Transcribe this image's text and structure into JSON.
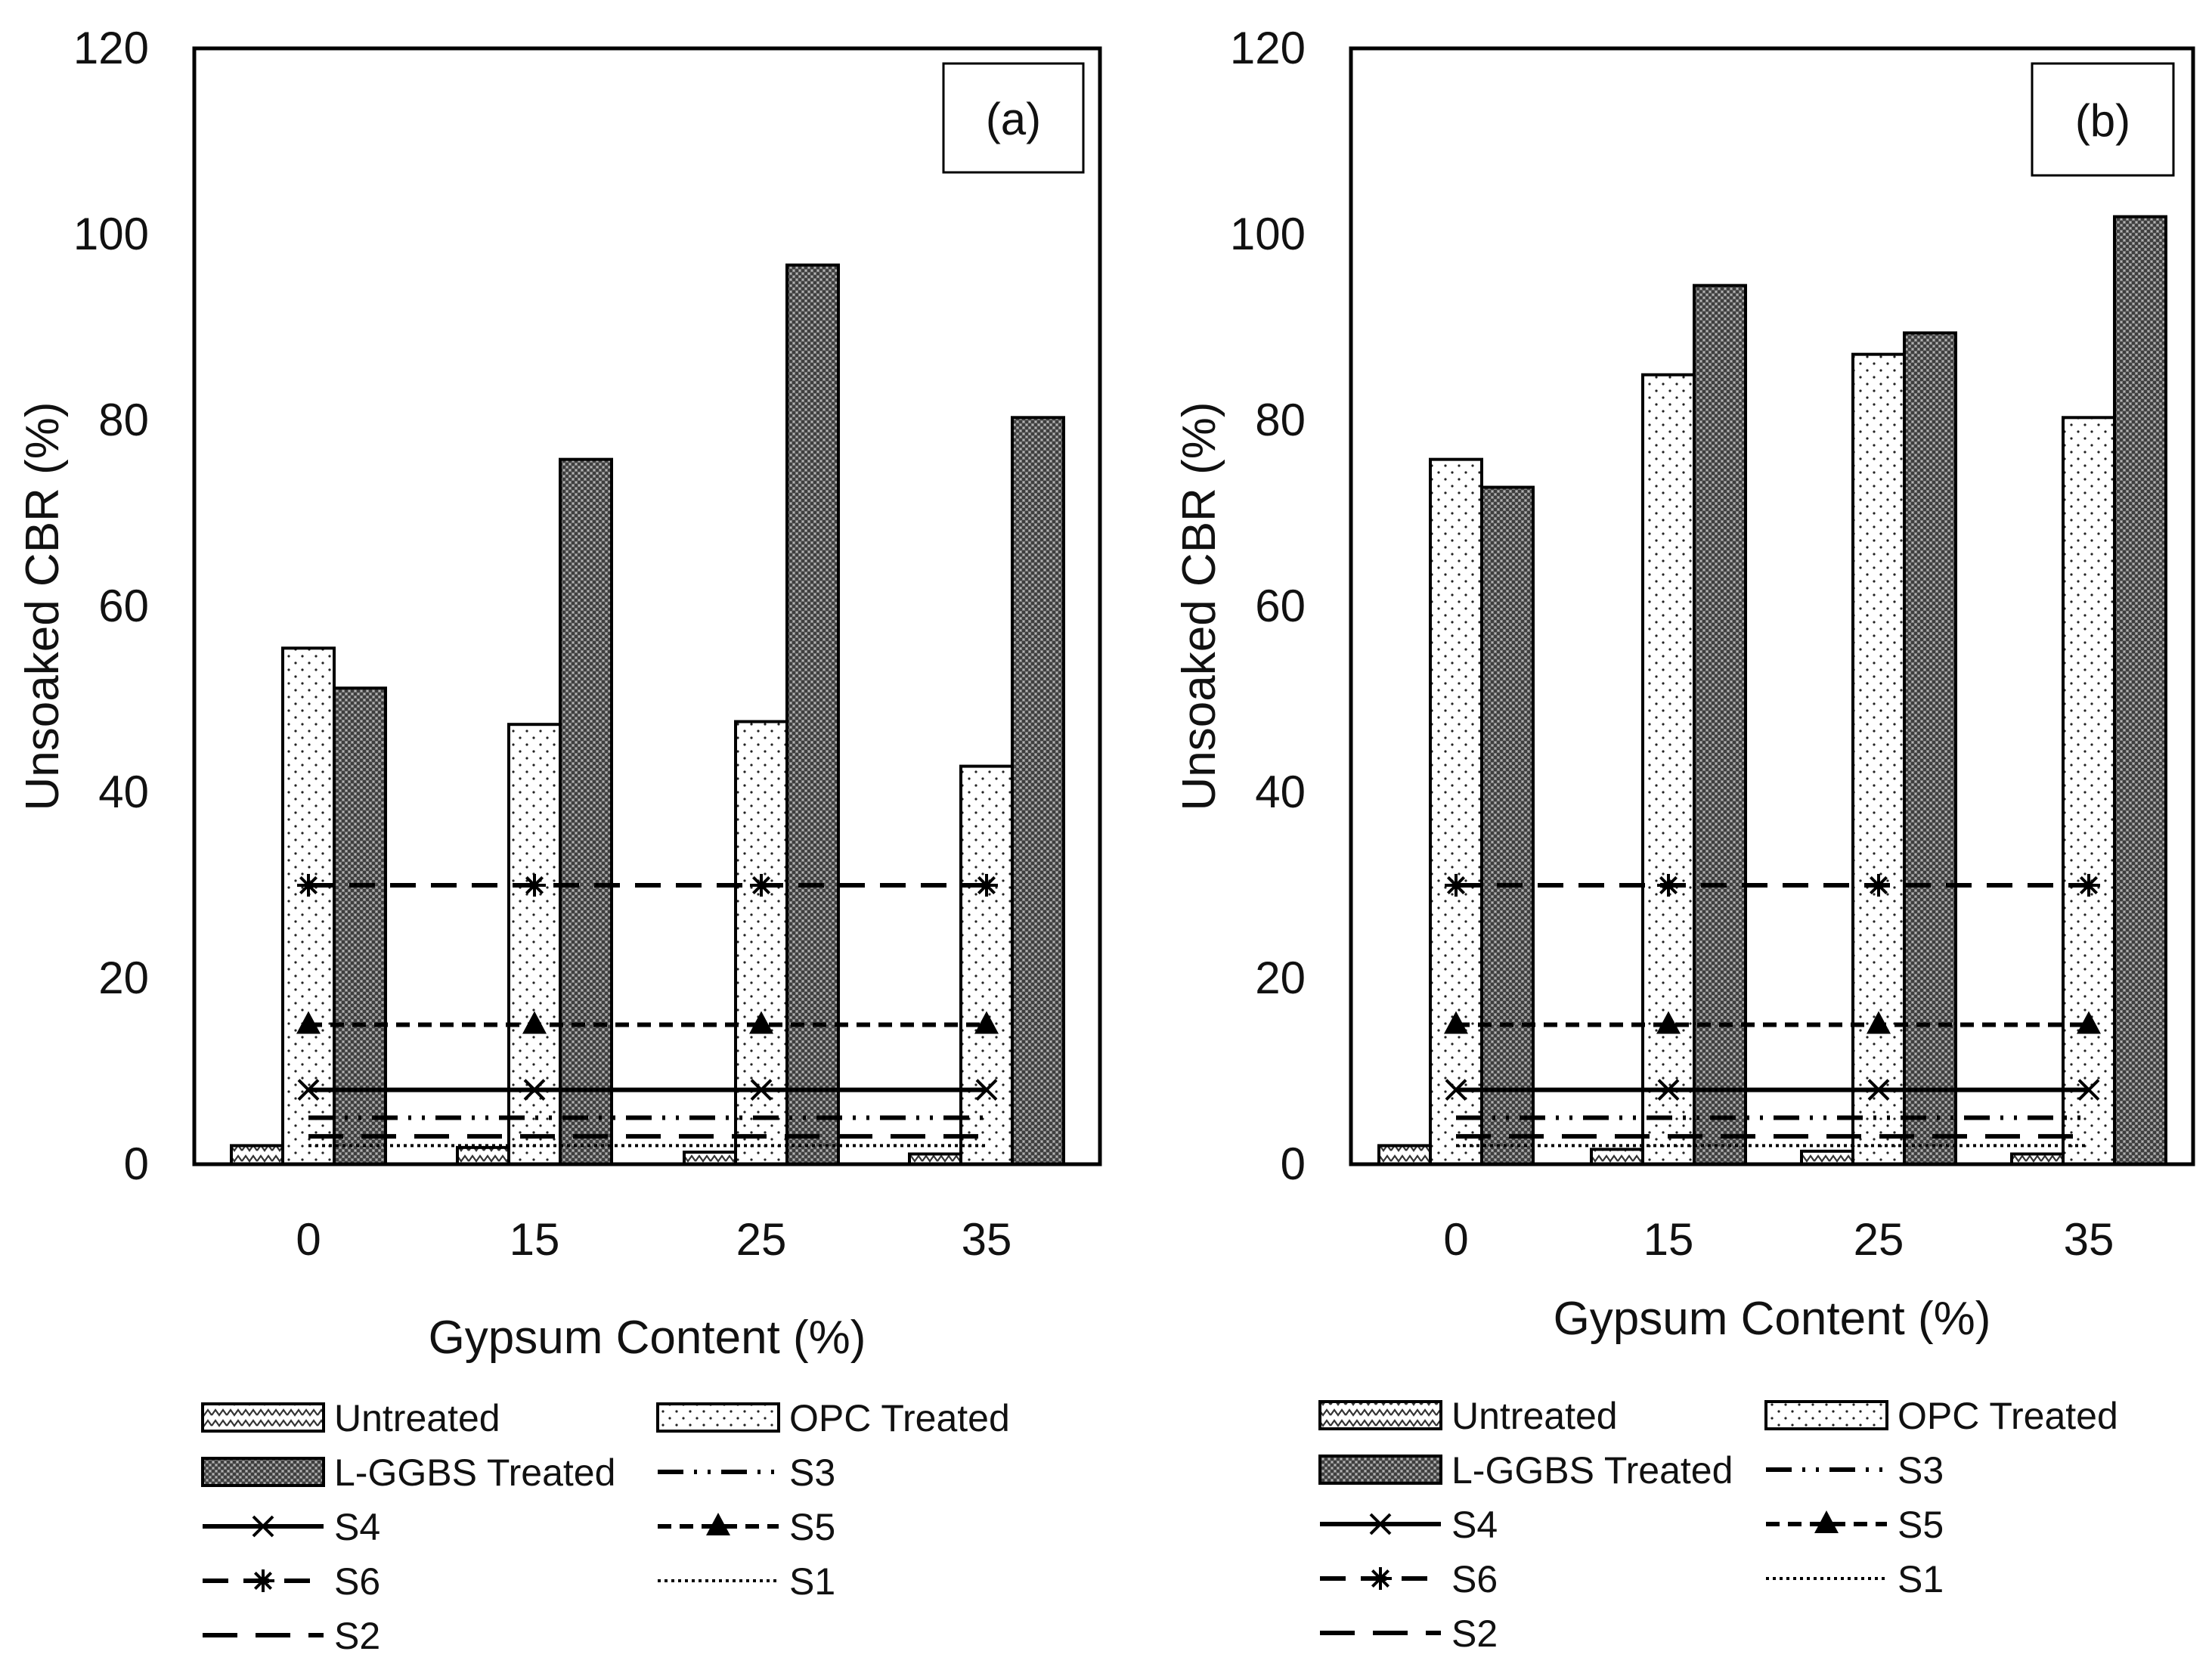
{
  "chart_data": [
    {
      "type": "bar",
      "panel_label": "(a)",
      "xlabel": "Gypsum Content (%)",
      "ylabel": "Unsoaked CBR (%)",
      "ylim": [
        0,
        120
      ],
      "yticks": [
        "0",
        "20",
        "40",
        "60",
        "80",
        "100",
        "120"
      ],
      "categories": [
        "0",
        "15",
        "25",
        "35"
      ],
      "series": [
        {
          "name": "Untreated",
          "pattern": "untreated",
          "values": [
            2,
            1.8,
            1.3,
            1.1
          ]
        },
        {
          "name": "OPC Treated",
          "pattern": "opc",
          "values": [
            55.5,
            47.3,
            47.6,
            42.8
          ]
        },
        {
          "name": "L-GGBS Treated",
          "pattern": "ggbs",
          "values": [
            51.2,
            75.8,
            96.7,
            80.3
          ]
        }
      ],
      "reference_lines": [
        {
          "name": "S3",
          "value": 5,
          "style": "dashdotdot"
        },
        {
          "name": "S4",
          "value": 8,
          "style": "solid",
          "marker": "x"
        },
        {
          "name": "S5",
          "value": 15,
          "style": "shortdash",
          "marker": "triangle"
        },
        {
          "name": "S6",
          "value": 30,
          "style": "dash",
          "marker": "star"
        },
        {
          "name": "S1",
          "value": 2,
          "style": "dotted"
        },
        {
          "name": "S2",
          "value": 3,
          "style": "longdash"
        }
      ],
      "legend": [
        "Untreated",
        "OPC Treated",
        "L-GGBS Treated",
        "S3",
        "S4",
        "S5",
        "S6",
        "S1",
        "S2"
      ]
    },
    {
      "type": "bar",
      "panel_label": "(b)",
      "xlabel": "Gypsum Content (%)",
      "ylabel": "Unsoaked CBR (%)",
      "ylim": [
        0,
        120
      ],
      "yticks": [
        "0",
        "20",
        "40",
        "60",
        "80",
        "100",
        "120"
      ],
      "categories": [
        "0",
        "15",
        "25",
        "35"
      ],
      "series": [
        {
          "name": "Untreated",
          "pattern": "untreated",
          "values": [
            2,
            1.6,
            1.4,
            1.1
          ]
        },
        {
          "name": "OPC Treated",
          "pattern": "opc",
          "values": [
            75.8,
            84.9,
            87.1,
            80.3
          ]
        },
        {
          "name": "L-GGBS Treated",
          "pattern": "ggbs",
          "values": [
            72.8,
            94.5,
            89.4,
            101.9
          ]
        }
      ],
      "reference_lines": [
        {
          "name": "S3",
          "value": 5,
          "style": "dashdotdot"
        },
        {
          "name": "S4",
          "value": 8,
          "style": "solid",
          "marker": "x"
        },
        {
          "name": "S5",
          "value": 15,
          "style": "shortdash",
          "marker": "triangle"
        },
        {
          "name": "S6",
          "value": 30,
          "style": "dash",
          "marker": "star"
        },
        {
          "name": "S1",
          "value": 2,
          "style": "dotted"
        },
        {
          "name": "S2",
          "value": 3,
          "style": "longdash"
        }
      ],
      "legend": [
        "Untreated",
        "OPC Treated",
        "L-GGBS Treated",
        "S3",
        "S4",
        "S5",
        "S6",
        "S1",
        "S2"
      ]
    }
  ]
}
